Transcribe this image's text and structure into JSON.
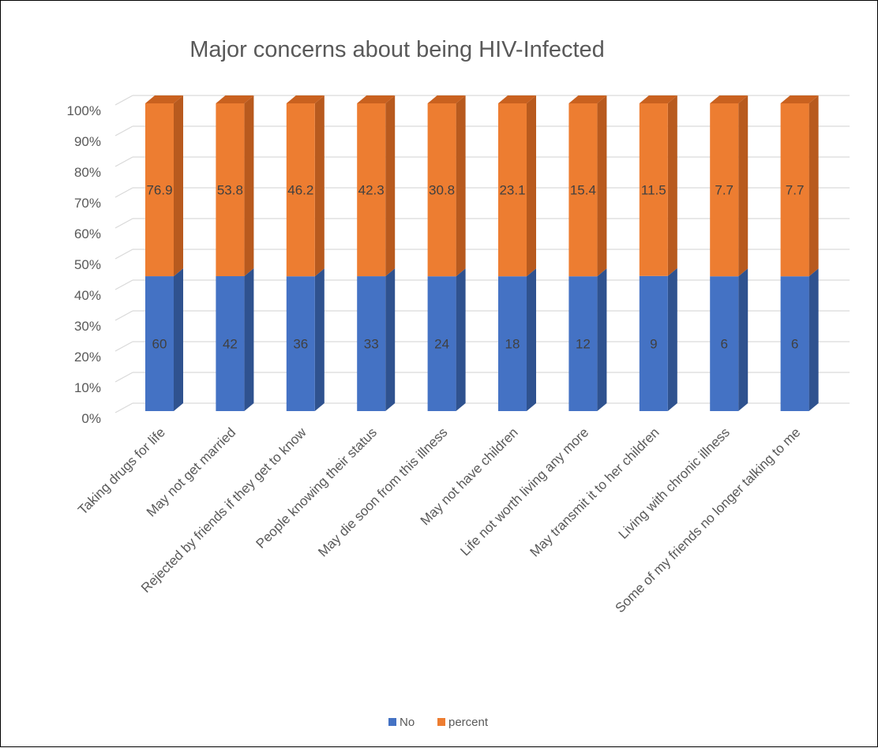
{
  "chart_data": {
    "type": "bar",
    "stacked": "percent",
    "three_d": true,
    "title": "Major concerns about being HIV-Infected",
    "categories": [
      "Taking drugs for life",
      "May not get married",
      "Rejected by friends if they get to know",
      "People knowing their status",
      "May die soon from this illness",
      "May not have children",
      "Life not worth living any more",
      "May transmit it to her children",
      "Living with chronic illness",
      "Some of my friends no longer talking to me"
    ],
    "series": [
      {
        "name": "No",
        "color": "#4472C4",
        "side_color": "#2F528F",
        "top_color": "#5B86D1",
        "values": [
          60,
          42,
          36,
          33,
          24,
          18,
          12,
          9,
          6,
          6
        ]
      },
      {
        "name": "percent",
        "color": "#ED7D31",
        "side_color": "#B85A1E",
        "top_color": "#C9611F",
        "values": [
          76.9,
          53.8,
          46.2,
          42.3,
          30.8,
          23.1,
          15.4,
          11.5,
          7.7,
          7.7
        ]
      }
    ],
    "y_ticks": [
      "0%",
      "10%",
      "20%",
      "30%",
      "40%",
      "50%",
      "60%",
      "70%",
      "80%",
      "90%",
      "100%"
    ],
    "ylim": [
      0,
      100
    ],
    "grid": true,
    "legend_position": "bottom"
  }
}
